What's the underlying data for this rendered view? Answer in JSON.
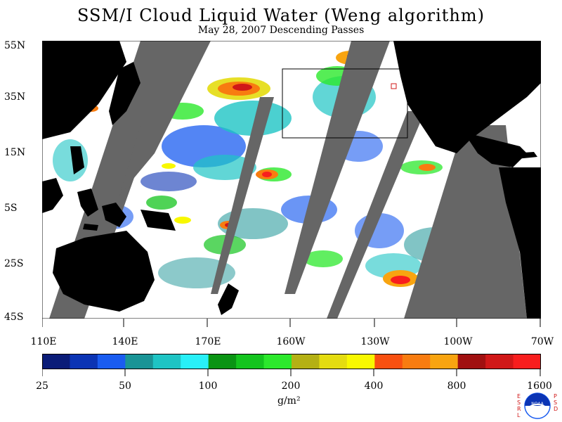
{
  "header": {
    "title": "SSM/I Cloud Liquid Water (Weng algorithm)",
    "subtitle": "May 28, 2007  Descending Passes"
  },
  "axes": {
    "lat_labels": [
      "55N",
      "35N",
      "15N",
      "5S",
      "25S",
      "45S"
    ],
    "lon_labels": [
      "110E",
      "140E",
      "170E",
      "160W",
      "130W",
      "100W",
      "70W"
    ]
  },
  "colorbar": {
    "labels": [
      "25",
      "50",
      "100",
      "200",
      "400",
      "800",
      "1600"
    ],
    "unit": "g/m²",
    "colors": [
      "#0a1c78",
      "#0b34b4",
      "#1a5cf0",
      "#1a9496",
      "#1ec4c4",
      "#28f0f8",
      "#0a9414",
      "#14c41e",
      "#2ce82c",
      "#b4b014",
      "#e4dc10",
      "#f8f800",
      "#f85010",
      "#f87c10",
      "#f8a410",
      "#a01010",
      "#d01818",
      "#f81e1e"
    ]
  },
  "logo": {
    "left_text": "ESRL",
    "right_text": "PSD",
    "center_text": "NOAA"
  },
  "colors": {
    "land": "#000000",
    "no_data": "#666666",
    "ocean_clear": "#ffffff",
    "region_box": "#000000",
    "marker": "#d01818"
  }
}
